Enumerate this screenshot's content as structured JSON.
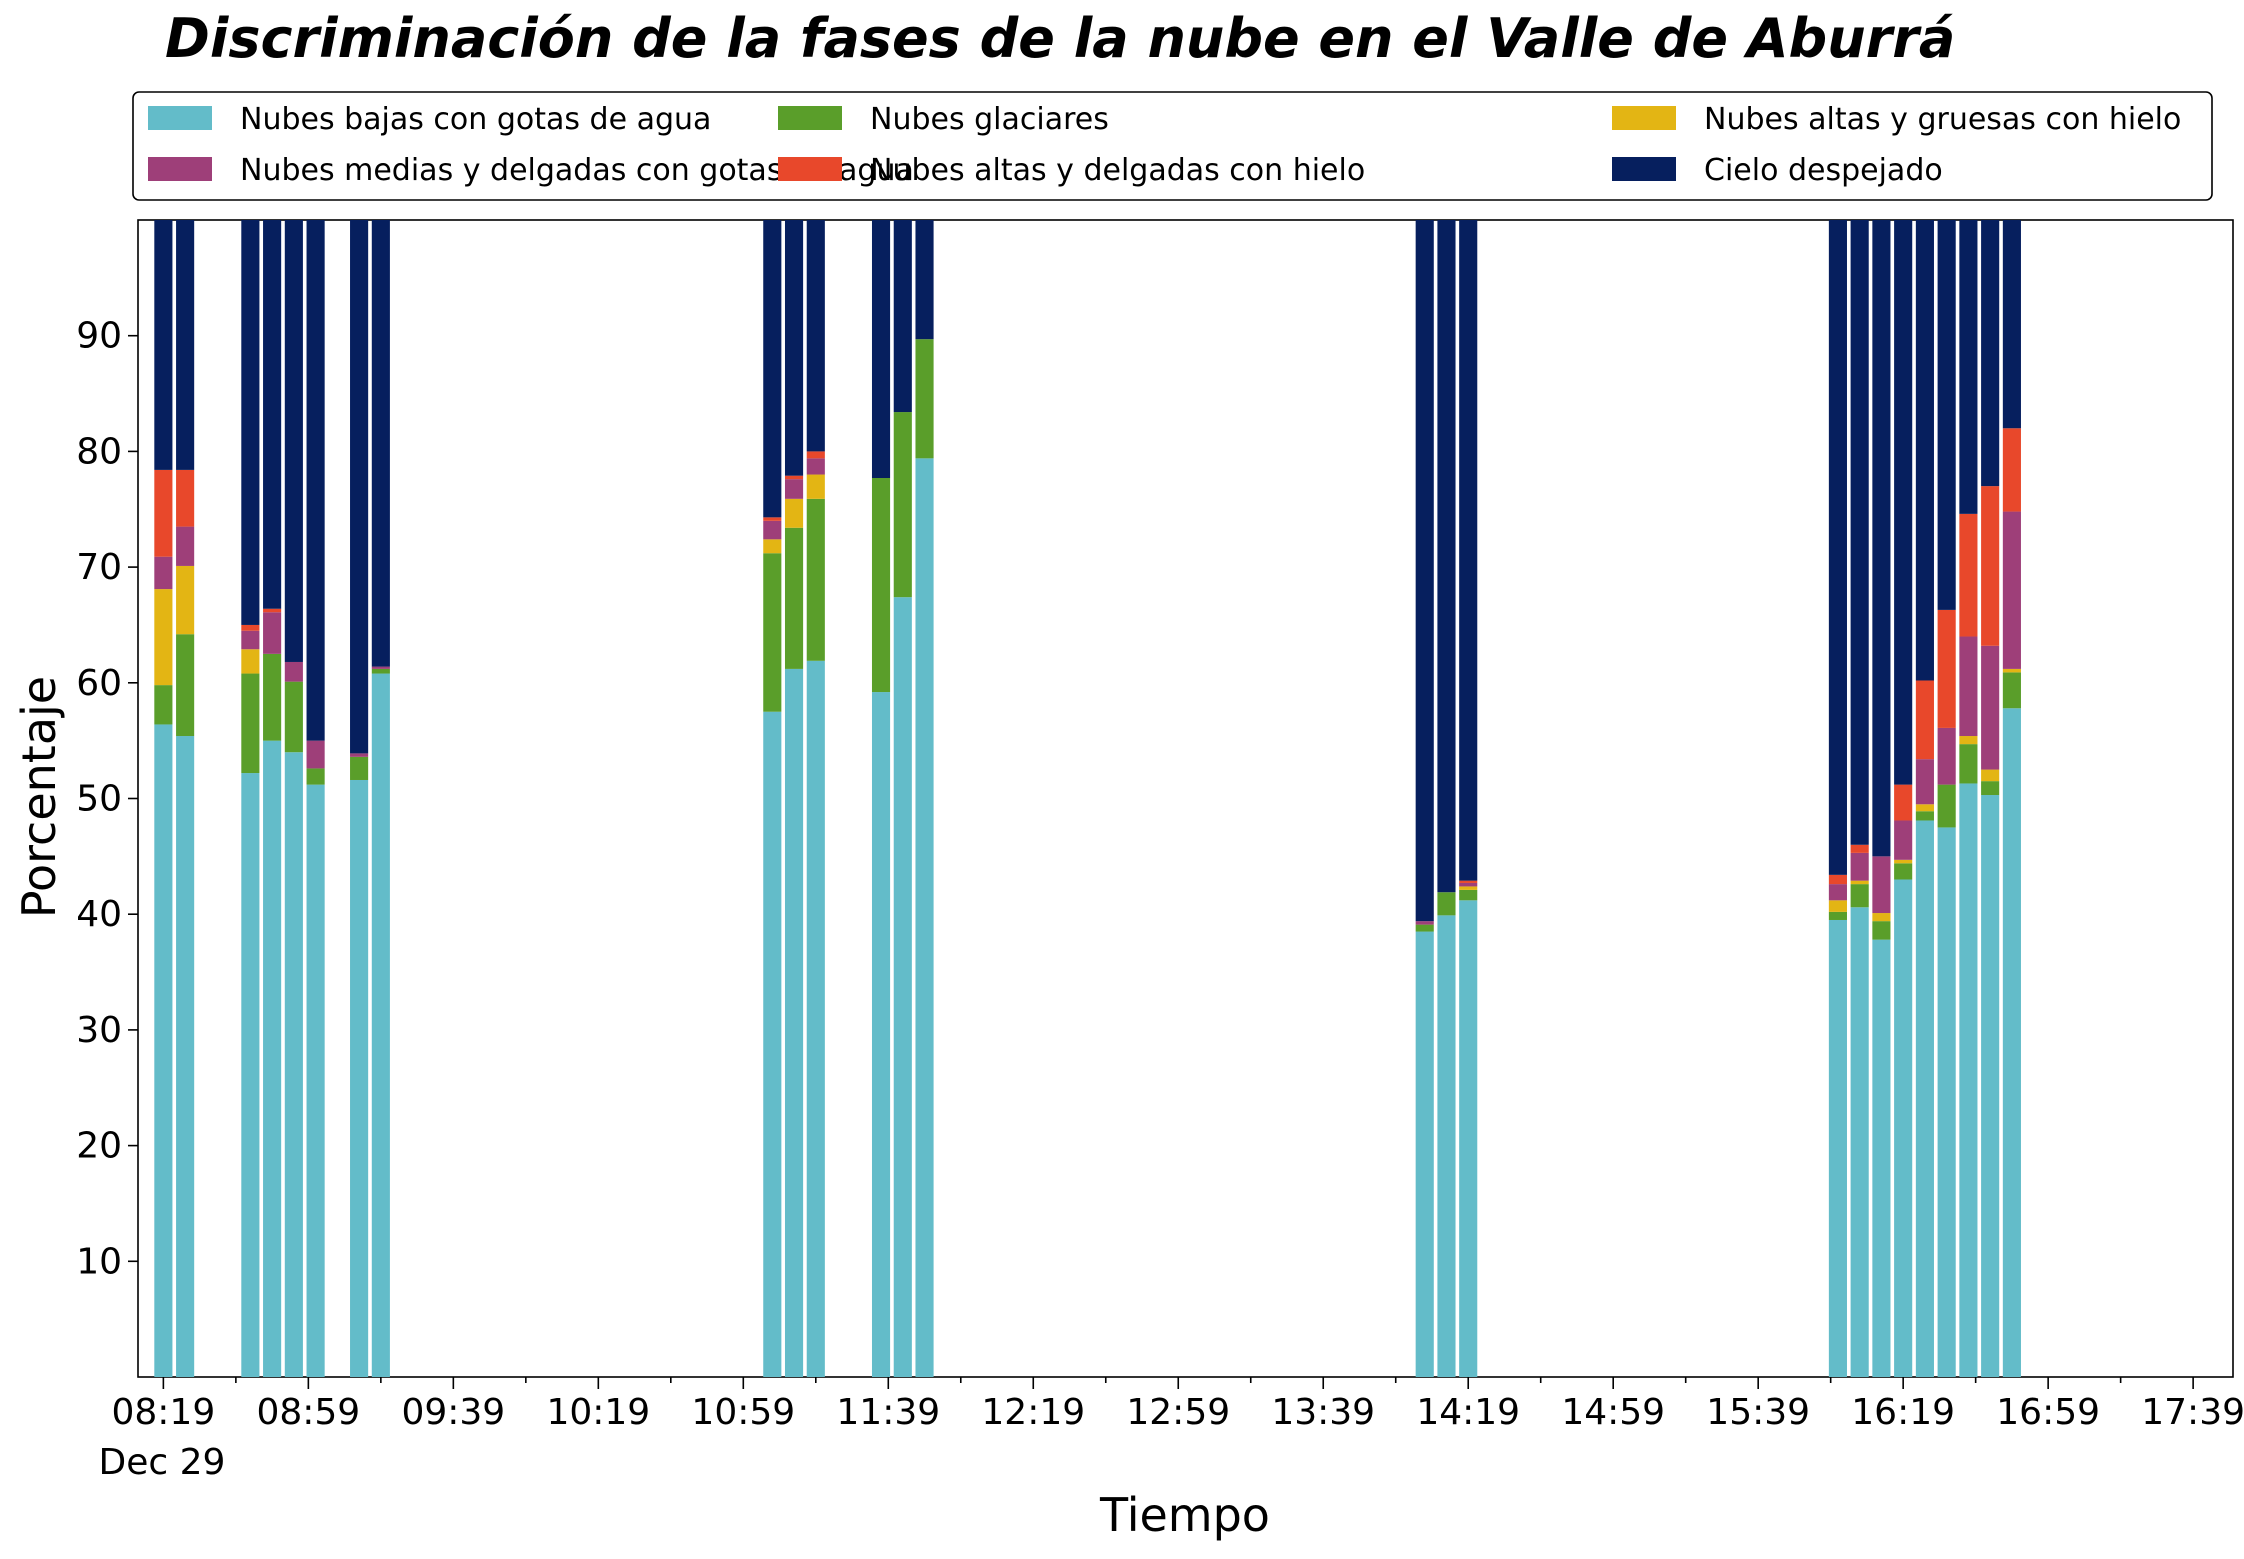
{
  "chart_data": {
    "type": "bar",
    "stacked": true,
    "title": "Discriminación de la fases de la nube en el Valle de Aburrá",
    "xlabel": "Tiempo",
    "ylabel": "Porcentaje",
    "ylim": [
      0,
      100
    ],
    "yticks": [
      10,
      20,
      30,
      40,
      50,
      60,
      70,
      80,
      90
    ],
    "xlim": [
      "08:12",
      "17:50"
    ],
    "xtick_labels": [
      "08:19",
      "08:59",
      "09:39",
      "10:19",
      "10:59",
      "11:39",
      "12:19",
      "12:59",
      "13:39",
      "14:19",
      "14:59",
      "15:39",
      "16:19",
      "16:59",
      "17:39"
    ],
    "date_label": "Dec 29",
    "grid": false,
    "legend_position": "top",
    "x": [
      "08:19",
      "08:25",
      "08:43",
      "08:49",
      "08:55",
      "09:01",
      "09:13",
      "09:19",
      "11:07",
      "11:13",
      "11:19",
      "11:37",
      "11:43",
      "11:49",
      "14:07",
      "14:13",
      "14:19",
      "16:01",
      "16:07",
      "16:13",
      "16:19",
      "16:25",
      "16:31",
      "16:37",
      "16:43",
      "16:49"
    ],
    "series": [
      {
        "name": "Nubes bajas con gotas de agua",
        "color": "#63bcc9",
        "values": [
          56.4,
          55.4,
          52.2,
          55.0,
          54.0,
          51.2,
          51.6,
          60.8,
          57.5,
          61.2,
          61.9,
          59.2,
          67.4,
          79.4,
          38.5,
          39.9,
          41.2,
          39.5,
          40.6,
          37.8,
          43.0,
          48.1,
          47.5,
          51.3,
          50.3,
          57.8
        ]
      },
      {
        "name": "Nubes glaciares",
        "color": "#5a9e2a",
        "values": [
          3.4,
          8.8,
          8.6,
          7.5,
          6.1,
          1.4,
          2.0,
          0.4,
          13.7,
          12.2,
          14.0,
          18.5,
          16.0,
          10.3,
          0.6,
          2.0,
          0.9,
          0.7,
          2.0,
          1.6,
          1.4,
          0.8,
          3.7,
          3.4,
          1.2,
          3.1
        ]
      },
      {
        "name": "Nubes altas y gruesas con hielo",
        "color": "#e3b514",
        "values": [
          8.3,
          5.9,
          2.1,
          0,
          0,
          0,
          0,
          0,
          1.2,
          2.5,
          2.1,
          0,
          0,
          0,
          0,
          0,
          0.3,
          1.0,
          0.3,
          0.7,
          0.3,
          0.6,
          0,
          0.7,
          1.0,
          0.3
        ]
      },
      {
        "name": "Nubes medias y delgadas con gotas de agua",
        "color": "#9e3f79",
        "values": [
          2.8,
          3.4,
          1.6,
          3.6,
          1.7,
          2.4,
          0.3,
          0.2,
          1.6,
          1.7,
          1.4,
          0,
          0,
          0,
          0.3,
          0,
          0.3,
          1.4,
          2.4,
          4.9,
          3.4,
          3.9,
          4.9,
          8.6,
          10.7,
          13.6
        ]
      },
      {
        "name": "Nubes altas y delgadas con hielo",
        "color": "#e8482b",
        "values": [
          7.5,
          4.9,
          0.5,
          0.3,
          0,
          0,
          0,
          0,
          0.3,
          0.3,
          0.6,
          0,
          0,
          0,
          0,
          0,
          0.2,
          0.8,
          0.7,
          0,
          3.1,
          6.8,
          10.2,
          10.6,
          13.8,
          7.2
        ]
      },
      {
        "name": "Cielo despejado",
        "color": "#061f5e",
        "values": [
          21.6,
          21.6,
          35.0,
          33.6,
          38.2,
          45.0,
          46.1,
          38.6,
          25.7,
          22.1,
          20.0,
          22.3,
          16.6,
          10.3,
          60.6,
          58.1,
          57.1,
          56.6,
          54.0,
          55.0,
          48.8,
          39.8,
          33.7,
          25.4,
          23.0,
          18.0
        ]
      }
    ]
  }
}
